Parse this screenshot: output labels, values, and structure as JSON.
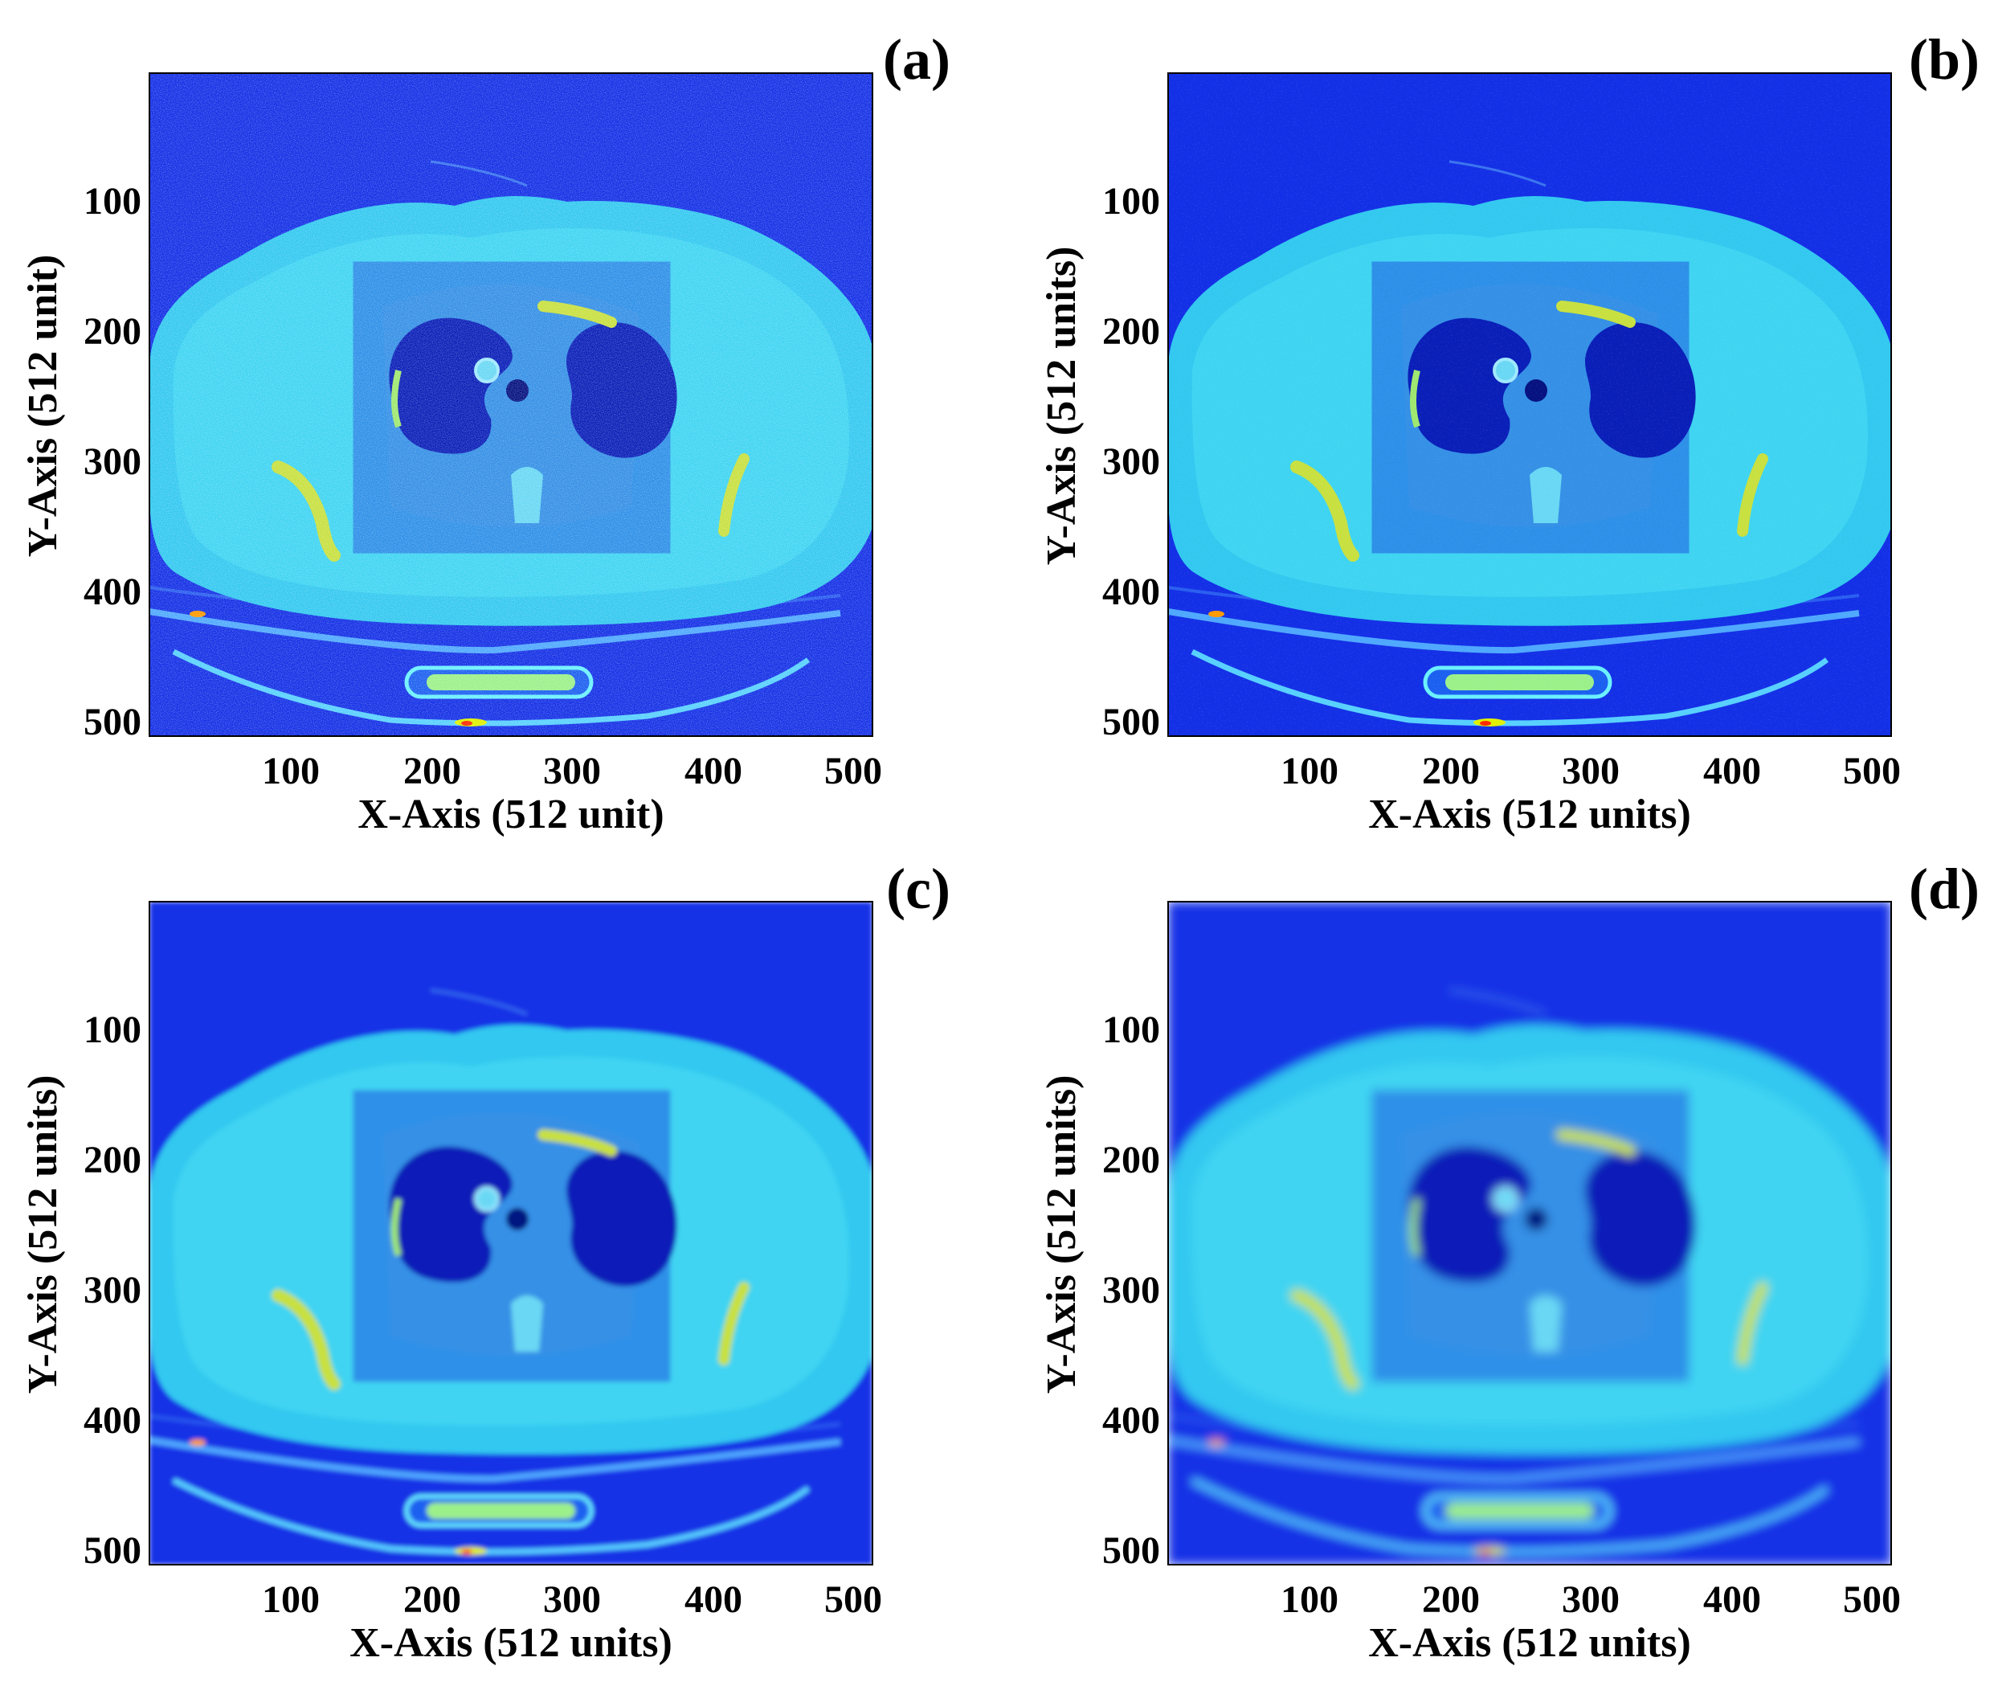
{
  "figure": {
    "panels": [
      {
        "label": "(a)",
        "xlabel": "X-Axis (512 unit)",
        "ylabel": "Y-Axis (512 unit)",
        "style": "noisy"
      },
      {
        "label": "(b)",
        "xlabel": "X-Axis (512 units)",
        "ylabel": "Y-Axis (512 units)",
        "style": "denoised"
      },
      {
        "label": "(c)",
        "xlabel": "X-Axis (512 units)",
        "ylabel": "Y-Axis (512 units)",
        "style": "smooth"
      },
      {
        "label": "(d)",
        "xlabel": "X-Axis (512 units)",
        "ylabel": "Y-Axis (512 units)",
        "style": "smoother"
      }
    ],
    "x_ticks": [
      "100",
      "200",
      "300",
      "400",
      "500"
    ],
    "y_ticks": [
      "100",
      "200",
      "300",
      "400",
      "500"
    ],
    "colormap": "jet",
    "colors": {
      "background": "#1430e6",
      "body": "#33c8f0",
      "lung": "#0a1fb8",
      "bone": "#c8e040",
      "hot": "#ff2a00"
    }
  }
}
